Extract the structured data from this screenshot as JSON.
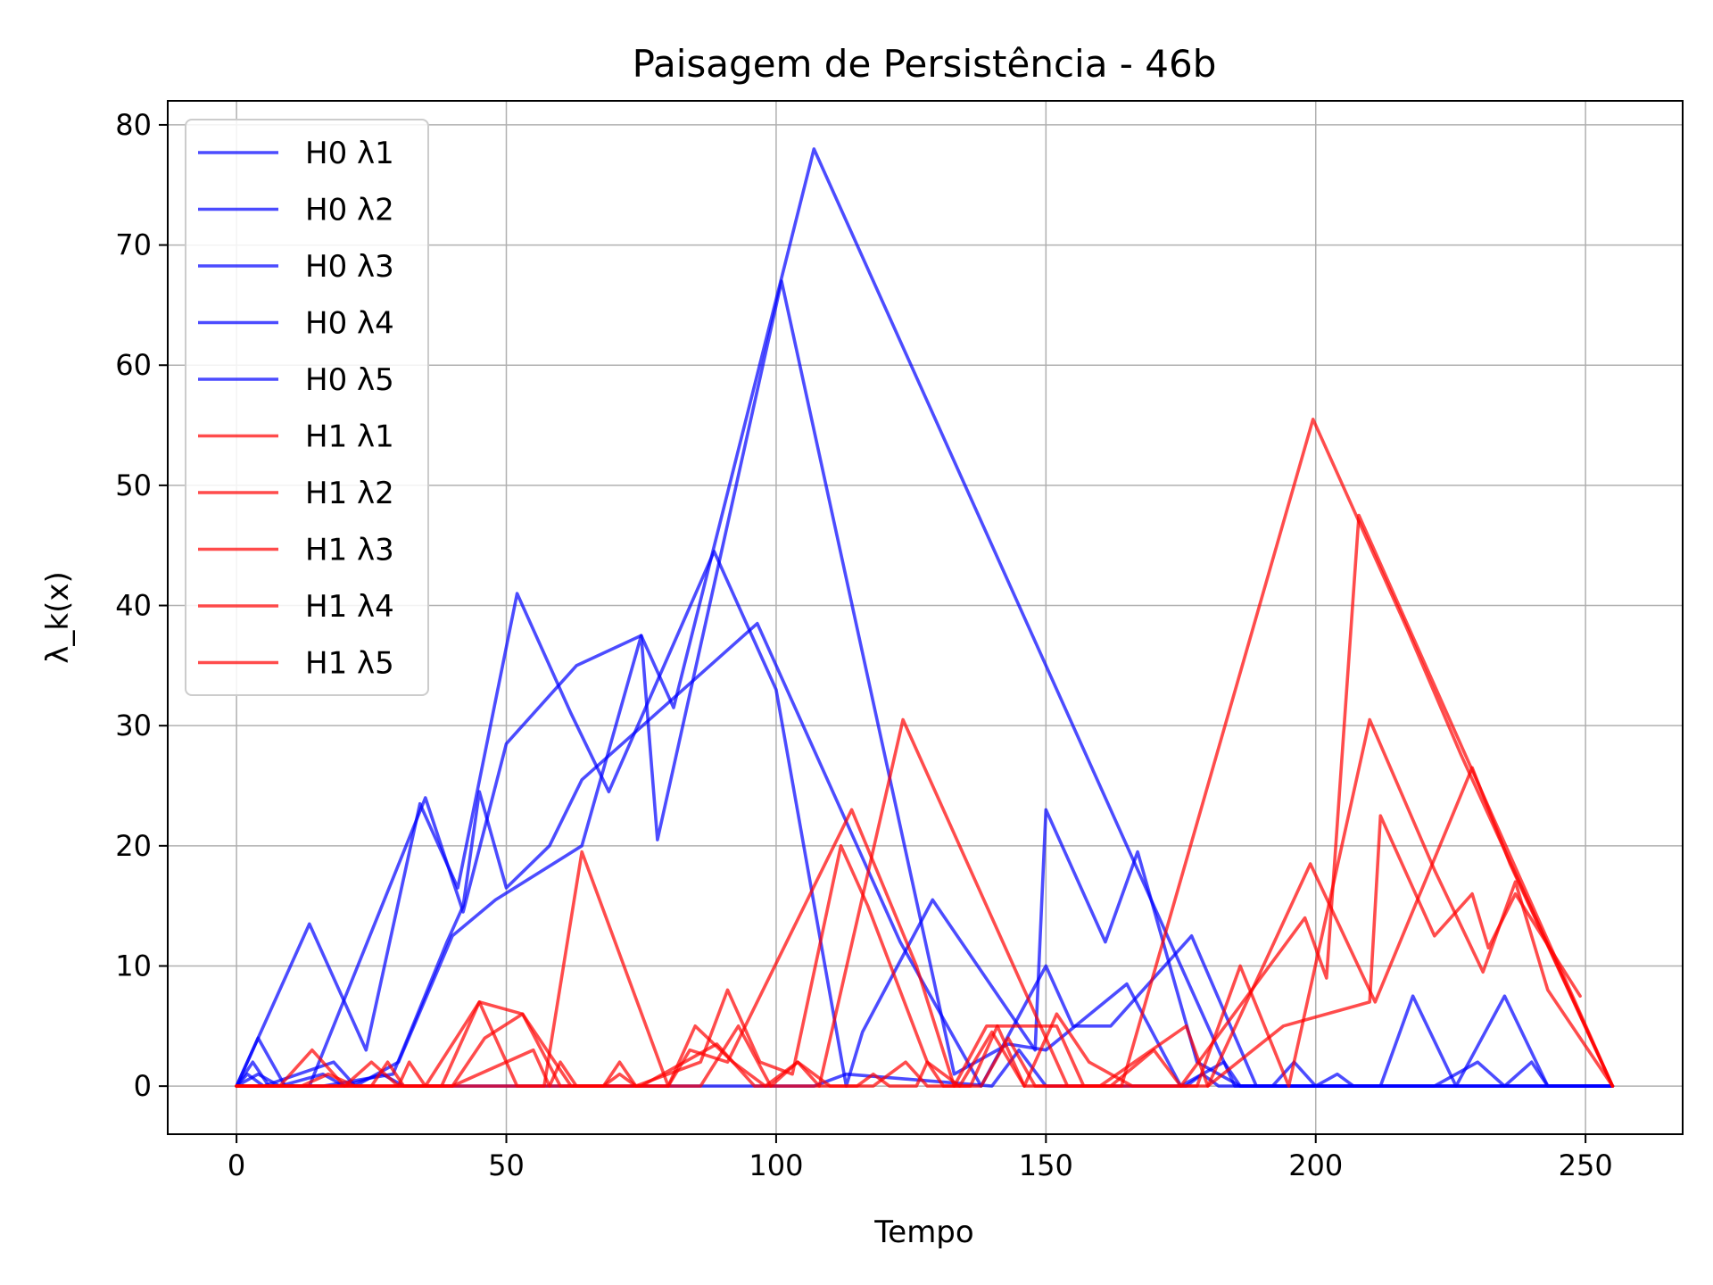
{
  "chart_data": {
    "type": "line",
    "title": "Paisagem de Persistência - 46b",
    "xlabel": "Tempo",
    "ylabel": "λ_k(x)",
    "xlim": [
      -12.75,
      268
    ],
    "ylim": [
      -4,
      82
    ],
    "xticks": [
      0,
      50,
      100,
      150,
      200,
      250
    ],
    "yticks": [
      0,
      10,
      20,
      30,
      40,
      50,
      60,
      70,
      80
    ],
    "grid": true,
    "legend_position": "top-left",
    "colors": {
      "H0": "#0000ff",
      "H1": "#ff0000"
    },
    "series": [
      {
        "name": "H0 λ1",
        "color": "#0000ff",
        "points": [
          [
            0,
            0
          ],
          [
            13.5,
            13.5
          ],
          [
            24,
            3
          ],
          [
            34,
            23.5
          ],
          [
            41,
            16.5
          ],
          [
            52,
            41
          ],
          [
            62,
            31
          ],
          [
            69,
            24.5
          ],
          [
            88.5,
            44.5
          ],
          [
            100,
            33
          ],
          [
            113,
            0
          ],
          [
            116,
            4.5
          ],
          [
            129,
            15.5
          ],
          [
            148,
            3
          ],
          [
            150,
            23
          ],
          [
            161,
            12
          ],
          [
            167,
            19.5
          ],
          [
            178,
            2
          ],
          [
            186,
            0
          ],
          [
            255,
            0
          ]
        ]
      },
      {
        "name": "H0 λ2",
        "color": "#0000ff",
        "points": [
          [
            0,
            0
          ],
          [
            4,
            4
          ],
          [
            9,
            0
          ],
          [
            13.5,
            0
          ],
          [
            35,
            24
          ],
          [
            42,
            14.5
          ],
          [
            50,
            28.5
          ],
          [
            63,
            35
          ],
          [
            75,
            37.5
          ],
          [
            81,
            31.5
          ],
          [
            107,
            78
          ],
          [
            178,
            7
          ],
          [
            185,
            0
          ],
          [
            192,
            0
          ],
          [
            196,
            2
          ],
          [
            200,
            0
          ],
          [
            204,
            1
          ],
          [
            207,
            0
          ],
          [
            255,
            0
          ]
        ]
      },
      {
        "name": "H0 λ3",
        "color": "#0000ff",
        "points": [
          [
            0,
            0
          ],
          [
            3,
            2
          ],
          [
            6,
            0
          ],
          [
            16,
            0
          ],
          [
            29,
            1
          ],
          [
            39,
            12
          ],
          [
            42,
            15
          ],
          [
            45,
            24.5
          ],
          [
            50,
            16.5
          ],
          [
            58,
            20
          ],
          [
            64,
            25.5
          ],
          [
            96.5,
            38.5
          ],
          [
            116,
            19
          ],
          [
            123,
            12
          ],
          [
            138,
            0
          ],
          [
            150,
            10
          ],
          [
            155,
            5
          ],
          [
            162,
            5
          ],
          [
            177,
            12.5
          ],
          [
            189,
            0
          ],
          [
            255,
            0
          ]
        ]
      },
      {
        "name": "H0 λ4",
        "color": "#0000ff",
        "points": [
          [
            0,
            0
          ],
          [
            2,
            1
          ],
          [
            5,
            0
          ],
          [
            18,
            2
          ],
          [
            22,
            0
          ],
          [
            30,
            2
          ],
          [
            40,
            12.5
          ],
          [
            48,
            15.5
          ],
          [
            64,
            20
          ],
          [
            75,
            37.5
          ],
          [
            78,
            20.5
          ],
          [
            101,
            67
          ],
          [
            133,
            1
          ],
          [
            143,
            3.5
          ],
          [
            150,
            3
          ],
          [
            165,
            8.5
          ],
          [
            175,
            0
          ],
          [
            183,
            2
          ],
          [
            186,
            0
          ],
          [
            196,
            0
          ],
          [
            202,
            0
          ],
          [
            212,
            0
          ],
          [
            218,
            7.5
          ],
          [
            226,
            0
          ],
          [
            235,
            7.5
          ],
          [
            243,
            0
          ],
          [
            255,
            0
          ]
        ]
      },
      {
        "name": "H0 λ5",
        "color": "#0000ff",
        "points": [
          [
            0,
            0
          ],
          [
            4,
            1
          ],
          [
            8,
            0
          ],
          [
            16,
            1
          ],
          [
            20,
            0
          ],
          [
            27,
            1
          ],
          [
            31,
            0
          ],
          [
            107,
            0
          ],
          [
            113,
            1
          ],
          [
            140,
            0
          ],
          [
            145,
            3
          ],
          [
            150,
            0
          ],
          [
            157,
            0
          ],
          [
            176,
            0
          ],
          [
            179,
            1
          ],
          [
            182,
            0
          ],
          [
            222,
            0
          ],
          [
            230,
            2
          ],
          [
            235,
            0
          ],
          [
            240,
            2
          ],
          [
            243,
            0
          ],
          [
            255,
            0
          ]
        ]
      },
      {
        "name": "H1 λ1",
        "color": "#ff0000",
        "points": [
          [
            0,
            0
          ],
          [
            8,
            0
          ],
          [
            14,
            3
          ],
          [
            20,
            0
          ],
          [
            35,
            0
          ],
          [
            45,
            7
          ],
          [
            52,
            0
          ],
          [
            57,
            0
          ],
          [
            64,
            19.5
          ],
          [
            80,
            0
          ],
          [
            84,
            3
          ],
          [
            91,
            2
          ],
          [
            114,
            23
          ],
          [
            126,
            10
          ],
          [
            133,
            0
          ],
          [
            139,
            5
          ],
          [
            152,
            5
          ],
          [
            157,
            0
          ],
          [
            164,
            0
          ],
          [
            199.5,
            55.5
          ],
          [
            217,
            38
          ],
          [
            227,
            27.5
          ],
          [
            255,
            0
          ]
        ]
      },
      {
        "name": "H1 λ2",
        "color": "#ff0000",
        "points": [
          [
            0,
            0
          ],
          [
            12,
            0
          ],
          [
            17,
            1
          ],
          [
            22,
            0
          ],
          [
            38,
            0
          ],
          [
            45,
            7
          ],
          [
            53,
            6
          ],
          [
            62,
            0
          ],
          [
            70,
            0
          ],
          [
            75,
            0
          ],
          [
            89,
            3.5
          ],
          [
            96,
            0
          ],
          [
            108,
            0
          ],
          [
            123.5,
            30.5
          ],
          [
            154,
            0
          ],
          [
            162,
            0
          ],
          [
            170,
            3
          ],
          [
            175,
            0
          ],
          [
            198,
            14
          ],
          [
            202,
            9
          ],
          [
            208,
            47.5
          ],
          [
            255,
            0
          ]
        ]
      },
      {
        "name": "H1 λ3",
        "color": "#ff0000",
        "points": [
          [
            0,
            0
          ],
          [
            20,
            0
          ],
          [
            25,
            2
          ],
          [
            30,
            0
          ],
          [
            40,
            0
          ],
          [
            46,
            4
          ],
          [
            53,
            6
          ],
          [
            60,
            0
          ],
          [
            80,
            0
          ],
          [
            85,
            5
          ],
          [
            92,
            2
          ],
          [
            98,
            0
          ],
          [
            104,
            2
          ],
          [
            110,
            0
          ],
          [
            118,
            0
          ],
          [
            124,
            2
          ],
          [
            128,
            0
          ],
          [
            138,
            0
          ],
          [
            143,
            4
          ],
          [
            148,
            0
          ],
          [
            160,
            0
          ],
          [
            176,
            5
          ],
          [
            180,
            0
          ],
          [
            194,
            5
          ],
          [
            210,
            7
          ],
          [
            212,
            22.5
          ],
          [
            222,
            12.5
          ],
          [
            229,
            16
          ],
          [
            232,
            11.5
          ],
          [
            237,
            16
          ],
          [
            249,
            7.5
          ]
        ]
      },
      {
        "name": "H1 λ4",
        "color": "#ff0000",
        "points": [
          [
            0,
            0
          ],
          [
            25,
            0
          ],
          [
            28,
            2
          ],
          [
            31,
            0
          ],
          [
            40,
            0
          ],
          [
            55,
            3
          ],
          [
            58,
            0
          ],
          [
            68,
            0
          ],
          [
            71,
            2
          ],
          [
            74,
            0
          ],
          [
            86,
            2
          ],
          [
            91,
            8
          ],
          [
            97,
            2
          ],
          [
            103,
            1
          ],
          [
            112,
            20
          ],
          [
            117,
            15
          ],
          [
            128,
            2
          ],
          [
            134,
            0
          ],
          [
            140,
            4.5
          ],
          [
            146,
            0
          ],
          [
            160,
            0
          ],
          [
            168,
            0
          ],
          [
            180,
            0
          ],
          [
            199,
            18.5
          ],
          [
            211,
            7
          ],
          [
            229,
            26.5
          ],
          [
            236,
            18.5
          ],
          [
            255,
            0
          ]
        ]
      },
      {
        "name": "H1 λ5",
        "color": "#ff0000",
        "points": [
          [
            0,
            0
          ],
          [
            30,
            0
          ],
          [
            32,
            2
          ],
          [
            35,
            0
          ],
          [
            58,
            0
          ],
          [
            60,
            2
          ],
          [
            63,
            0
          ],
          [
            68,
            0
          ],
          [
            71,
            1
          ],
          [
            74,
            0
          ],
          [
            86,
            0
          ],
          [
            93,
            5
          ],
          [
            99,
            0
          ],
          [
            104,
            2
          ],
          [
            108,
            0
          ],
          [
            115,
            0
          ],
          [
            118,
            1
          ],
          [
            121,
            0
          ],
          [
            126,
            0
          ],
          [
            128,
            2
          ],
          [
            131,
            0
          ],
          [
            136,
            0
          ],
          [
            141,
            5
          ],
          [
            146,
            0
          ],
          [
            152,
            6
          ],
          [
            158,
            2
          ],
          [
            166,
            0
          ],
          [
            178,
            0
          ],
          [
            186,
            10
          ],
          [
            195,
            0
          ],
          [
            210,
            30.5
          ],
          [
            222,
            18
          ],
          [
            231,
            9.5
          ],
          [
            237,
            17
          ],
          [
            243,
            8
          ],
          [
            255,
            0
          ]
        ]
      }
    ]
  }
}
